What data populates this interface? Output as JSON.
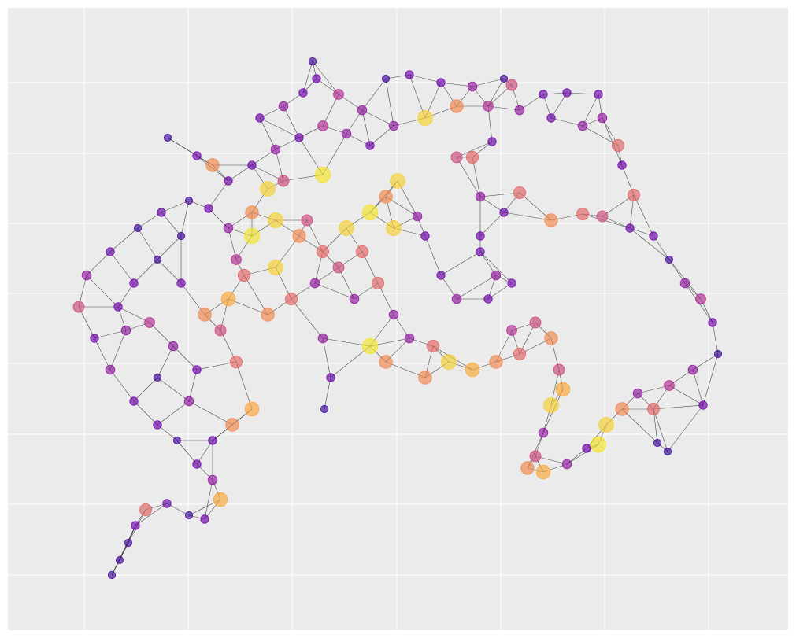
{
  "chart_data": {
    "type": "network",
    "colormap": "plasma",
    "grid": true,
    "xlim": [
      10,
      1001
    ],
    "ylim": [
      801,
      10
    ],
    "xticks": [
      107,
      239,
      371,
      504,
      636,
      768,
      900
    ],
    "yticks": [
      105,
      195,
      284,
      373,
      462,
      552,
      641,
      731
    ],
    "x": [
      142,
      152,
      163,
      172,
      185,
      212,
      240,
      260,
      280,
      270,
      250,
      225,
      200,
      170,
      140,
      120,
      100,
      110,
      140,
      175,
      205,
      240,
      265,
      290,
      300,
      290,
      280,
      300,
      320,
      295,
      270,
      170,
      200,
      230,
      190,
      220,
      250,
      200,
      240,
      160,
      260,
      230,
      150,
      213,
      250,
      270,
      290,
      330,
      360,
      385,
      397,
      402,
      430,
      460,
      490,
      520,
      560,
      600,
      640,
      650,
      690,
      720,
      760,
      765,
      740,
      700,
      660,
      620,
      580,
      540,
      500,
      470,
      440,
      410,
      380,
      350,
      320,
      785,
      790,
      805,
      800,
      830,
      850,
      870,
      890,
      905,
      912,
      880,
      850,
      830,
      810,
      790,
      770,
      760,
      835,
      848,
      893,
      340,
      360,
      410,
      320,
      350,
      380,
      410,
      440,
      470,
      490,
      500,
      460,
      430,
      400,
      370,
      340,
      320,
      310,
      350,
      390,
      505,
      530,
      410,
      420,
      412,
      450,
      480,
      500,
      470,
      490,
      520,
      550,
      540,
      570,
      600,
      630,
      660,
      650,
      680,
      700,
      710,
      715,
      700,
      690,
      680,
      670,
      690,
      720,
      745,
      610,
      640,
      660,
      700,
      740,
      765,
      610,
      630,
      650,
      620,
      580,
      610,
      560,
      540,
      580,
      600,
      625
    ],
    "y": [
      731,
      712,
      690,
      668,
      648,
      640,
      655,
      660,
      635,
      610,
      590,
      560,
      540,
      510,
      470,
      430,
      390,
      350,
      320,
      290,
      270,
      255,
      265,
      290,
      330,
      380,
      420,
      460,
      520,
      540,
      560,
      360,
      330,
      360,
      410,
      440,
      470,
      480,
      510,
      420,
      400,
      300,
      390,
      175,
      198,
      210,
      230,
      150,
      135,
      118,
      78,
      100,
      120,
      140,
      100,
      95,
      105,
      110,
      100,
      108,
      120,
      118,
      120,
      150,
      160,
      150,
      140,
      135,
      135,
      150,
      160,
      185,
      170,
      160,
      175,
      190,
      210,
      185,
      210,
      248,
      290,
      300,
      330,
      360,
      380,
      410,
      450,
      470,
      490,
      520,
      500,
      520,
      540,
      565,
      563,
      574,
      515,
      240,
      230,
      222,
      270,
      280,
      300,
      320,
      290,
      270,
      250,
      290,
      320,
      340,
      360,
      380,
      400,
      300,
      350,
      340,
      280,
      230,
      275,
      430,
      480,
      520,
      380,
      360,
      400,
      440,
      460,
      430,
      440,
      480,
      460,
      470,
      460,
      450,
      420,
      410,
      430,
      470,
      495,
      515,
      550,
      580,
      595,
      600,
      590,
      570,
      250,
      270,
      245,
      280,
      272,
      275,
      320,
      350,
      360,
      380,
      380,
      300,
      350,
      300,
      200,
      200,
      180
    ],
    "values": [
      0.1,
      0.1,
      0.1,
      0.2,
      0.6,
      0.2,
      0.1,
      0.2,
      0.8,
      0.3,
      0.2,
      0.1,
      0.2,
      0.2,
      0.3,
      0.2,
      0.5,
      0.3,
      0.2,
      0.1,
      0.2,
      0.1,
      0.2,
      0.3,
      0.4,
      0.8,
      0.5,
      0.6,
      0.8,
      0.7,
      0.2,
      0.2,
      0.1,
      0.2,
      0.4,
      0.3,
      0.2,
      0.1,
      0.3,
      0.3,
      0.7,
      0.1,
      0.2,
      0.1,
      0.2,
      0.7,
      0.2,
      0.2,
      0.3,
      0.2,
      0.1,
      0.2,
      0.4,
      0.3,
      0.1,
      0.2,
      0.2,
      0.3,
      0.1,
      0.5,
      0.2,
      0.2,
      0.2,
      0.3,
      0.3,
      0.2,
      0.3,
      0.4,
      0.7,
      0.9,
      0.3,
      0.2,
      0.3,
      0.4,
      0.2,
      0.3,
      0.2,
      0.6,
      0.2,
      0.6,
      0.2,
      0.2,
      0.1,
      0.3,
      0.4,
      0.2,
      0.1,
      0.3,
      0.4,
      0.6,
      0.3,
      0.7,
      0.9,
      0.95,
      0.1,
      0.1,
      0.2,
      0.9,
      0.5,
      0.95,
      0.7,
      0.9,
      0.7,
      0.6,
      0.9,
      0.95,
      0.7,
      0.9,
      0.6,
      0.5,
      0.3,
      0.6,
      0.7,
      0.95,
      0.6,
      0.9,
      0.5,
      0.9,
      0.3,
      0.3,
      0.2,
      0.1,
      0.3,
      0.6,
      0.3,
      0.95,
      0.7,
      0.3,
      0.6,
      0.7,
      0.9,
      0.8,
      0.7,
      0.6,
      0.4,
      0.5,
      0.7,
      0.5,
      0.8,
      0.9,
      0.3,
      0.5,
      0.7,
      0.8,
      0.3,
      0.2,
      0.3,
      0.2,
      0.6,
      0.7,
      0.6,
      0.5,
      0.2,
      0.3,
      0.2,
      0.2,
      0.3,
      0.2,
      0.2,
      0.2,
      0.5,
      0.6,
      0.2
    ]
  }
}
